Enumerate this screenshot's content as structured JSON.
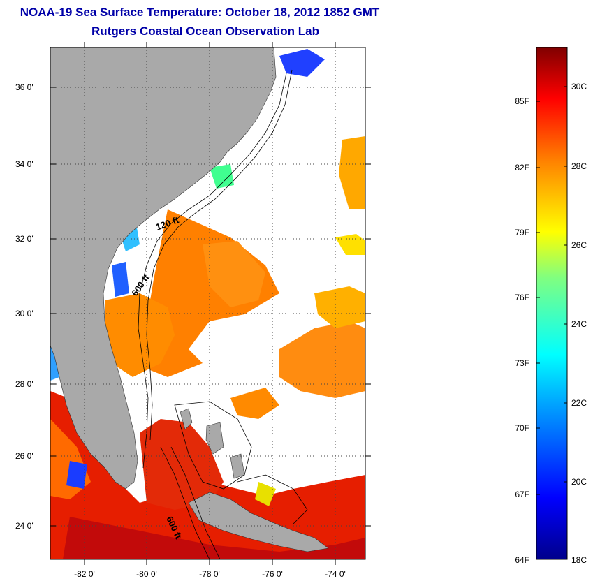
{
  "title": {
    "line1": "NOAA-19 Sea Surface Temperature:  October 18, 2012 1852 GMT",
    "line2": "Rutgers Coastal Ocean Observation Lab"
  },
  "map": {
    "lat_labels": [
      "36 0'",
      "34 0'",
      "32 0'",
      "30 0'",
      "28 0'",
      "26 0'",
      "24 0'"
    ],
    "lon_labels": [
      "-82 0'",
      "-80 0'",
      "-78 0'",
      "-76 0'",
      "-74 0'"
    ],
    "contour_labels": [
      "120 ft",
      "600 ft",
      "600 ft"
    ],
    "colors": {
      "land": "#a9a9a9",
      "ocean_nodata": "#ffffff",
      "frame": "#000000"
    }
  },
  "colorbar": {
    "fahrenheit": [
      "85F",
      "82F",
      "79F",
      "76F",
      "73F",
      "70F",
      "67F",
      "64F"
    ],
    "celsius": [
      "30C",
      "28C",
      "26C",
      "24C",
      "22C",
      "20C",
      "18C"
    ],
    "colormap": "jet",
    "range_c": [
      18,
      31.5
    ]
  }
}
